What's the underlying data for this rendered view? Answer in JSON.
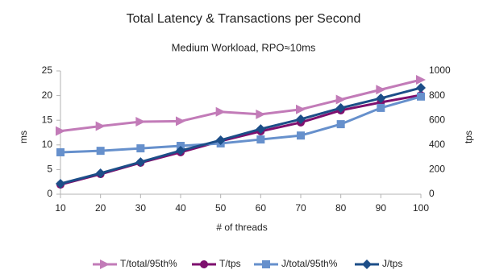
{
  "chart_data": {
    "type": "line",
    "title": "Total Latency & Transactions per Second",
    "subtitle": "Medium Workload, RPO≈10ms",
    "x_label": "# of threads",
    "y_label": "ms",
    "y2_label": "tps",
    "x": [
      10,
      20,
      30,
      40,
      50,
      60,
      70,
      80,
      90,
      100
    ],
    "xlim": [
      10,
      100
    ],
    "xticks": [
      10,
      20,
      30,
      40,
      50,
      60,
      70,
      80,
      90,
      100
    ],
    "ylim": [
      0,
      25
    ],
    "yticks": [
      0,
      5,
      10,
      15,
      20,
      25
    ],
    "y2lim": [
      0,
      1000
    ],
    "y2ticks": [
      0,
      200,
      400,
      600,
      800,
      1000
    ],
    "grid": false,
    "legend": "bottom",
    "series": [
      {
        "name": "T/total/95th%",
        "color": "#c27bb8",
        "marker": "triangle-right",
        "axis": "y",
        "values": [
          12.8,
          13.8,
          14.7,
          14.8,
          16.7,
          16.2,
          17.2,
          19.2,
          21.2,
          23.2
        ]
      },
      {
        "name": "T/tps",
        "color": "#7e0f6e",
        "marker": "circle",
        "axis": "y2",
        "values": [
          78,
          163,
          255,
          340,
          431,
          510,
          582,
          680,
          745,
          804
        ]
      },
      {
        "name": "J/total/95th%",
        "color": "#6690cc",
        "marker": "square",
        "axis": "y",
        "values": [
          8.5,
          8.8,
          9.3,
          9.8,
          10.3,
          11.1,
          11.9,
          14.2,
          17.5,
          19.8
        ]
      },
      {
        "name": "J/tps",
        "color": "#1c4e88",
        "marker": "diamond",
        "axis": "y2",
        "values": [
          85,
          170,
          261,
          353,
          438,
          529,
          608,
          699,
          778,
          863
        ]
      }
    ]
  }
}
